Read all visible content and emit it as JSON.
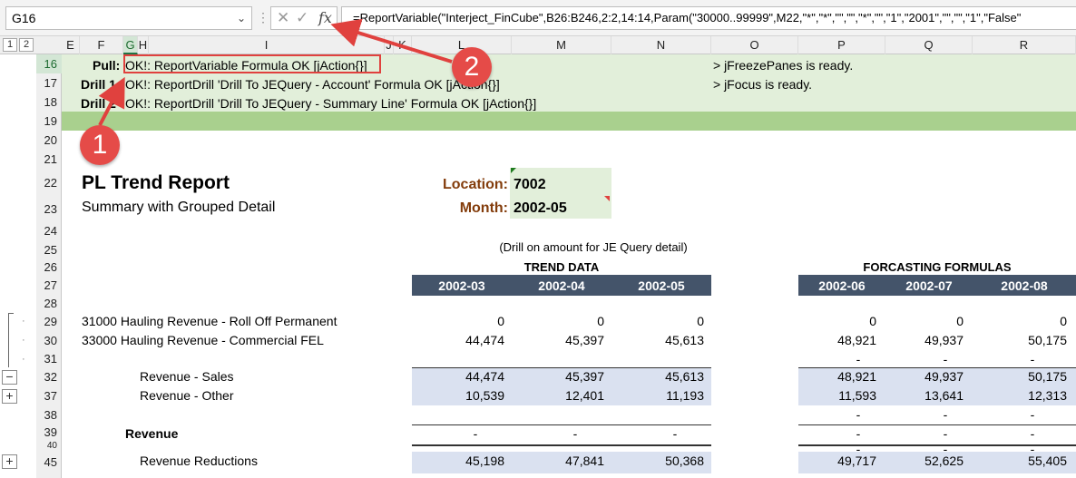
{
  "formula_bar": {
    "name_box": "G16",
    "dots": "⋮",
    "cancel_glyph": "✕",
    "enter_glyph": "✓",
    "fx_glyph": "fx",
    "formula": "=ReportVariable(\"Interject_FinCube\",B26:B246,2:2,14:14,Param(\"30000..99999\",M22,\"*\",\"*\",\"\",\"\",\"*\",\"\",\"1\",\"2001\",\"\",\"\",\"1\",\"False\""
  },
  "outline_levels": [
    "1",
    "2"
  ],
  "columns": [
    "E",
    "F",
    "G",
    "H",
    "I",
    "J",
    "K",
    "L",
    "M",
    "N",
    "O",
    "P",
    "Q",
    "R"
  ],
  "selected_column": "G",
  "rows": [
    "16",
    "17",
    "18",
    "19",
    "20",
    "21",
    "22",
    "23",
    "24",
    "25",
    "26",
    "27",
    "28",
    "29",
    "30",
    "31",
    "32",
    "37",
    "38",
    "39",
    "40",
    "45"
  ],
  "selected_row": "16",
  "group_buttons": {
    "minus": "−",
    "plus": "+"
  },
  "status_rows": {
    "pull_label": "Pull:",
    "pull_text": "OK!: ReportVariable Formula OK [jAction{}]",
    "drill1_label": "Drill 1",
    "drill1_text": "OK!: ReportDrill 'Drill To JEQuery - Account' Formula OK [jAction{}]",
    "drill2_label": "Drill 2",
    "drill2_text": "OK!: ReportDrill 'Drill To JEQuery - Summary Line' Formula OK [jAction{}]",
    "msg1": "> jFreezePanes is ready.",
    "msg2": "> jFocus is ready."
  },
  "annotations": {
    "callout1": "1",
    "callout2": "2"
  },
  "report": {
    "title": "PL Trend Report",
    "subtitle": "Summary with Grouped Detail",
    "location_label": "Location:",
    "location_value": "7002",
    "month_label": "Month:",
    "month_value": "2002-05",
    "drill_note": "(Drill on amount for JE Query detail)",
    "trend_header": "TREND DATA",
    "forecast_header": "FORCASTING FORMULAS",
    "trend_periods": [
      "2002-03",
      "2002-04",
      "2002-05"
    ],
    "forecast_periods": [
      "2002-06",
      "2002-07",
      "2002-08"
    ]
  },
  "lines": [
    {
      "label": "31000  Hauling Revenue - Roll Off Permanent",
      "trend": [
        "0",
        "0",
        "0"
      ],
      "forecast": [
        "0",
        "0",
        "0"
      ]
    },
    {
      "label": "33000  Hauling Revenue - Commercial FEL",
      "trend": [
        "44,474",
        "45,397",
        "45,613"
      ],
      "forecast": [
        "48,921",
        "49,937",
        "50,175"
      ]
    },
    {
      "label": "",
      "trend": [
        "",
        "",
        ""
      ],
      "forecast": [
        "-",
        "-",
        "-"
      ]
    },
    {
      "label": "Revenue - Sales",
      "trend": [
        "44,474",
        "45,397",
        "45,613"
      ],
      "forecast": [
        "48,921",
        "49,937",
        "50,175"
      ]
    },
    {
      "label": "Revenue - Other",
      "trend": [
        "10,539",
        "12,401",
        "11,193"
      ],
      "forecast": [
        "11,593",
        "13,641",
        "12,313"
      ]
    },
    {
      "label": "",
      "trend": [
        "",
        "",
        ""
      ],
      "forecast": [
        "-",
        "-",
        "-"
      ]
    },
    {
      "label": "Revenue",
      "trend": [
        "-",
        "-",
        "-"
      ],
      "forecast": [
        "-",
        "-",
        "-"
      ]
    },
    {
      "label": "",
      "trend": [
        "",
        "",
        ""
      ],
      "forecast": [
        "-",
        "-",
        "-"
      ]
    },
    {
      "label": "Revenue Reductions",
      "trend": [
        "45,198",
        "47,841",
        "50,368"
      ],
      "forecast": [
        "49,717",
        "52,625",
        "55,405"
      ]
    }
  ],
  "colors": {
    "status_band": "#e2efda",
    "status_band_dark": "#a9d08e",
    "header_fill": "#44546a",
    "shade": "#dae1f0",
    "annotation": "#e54b48",
    "label_brown": "#833c0b"
  }
}
